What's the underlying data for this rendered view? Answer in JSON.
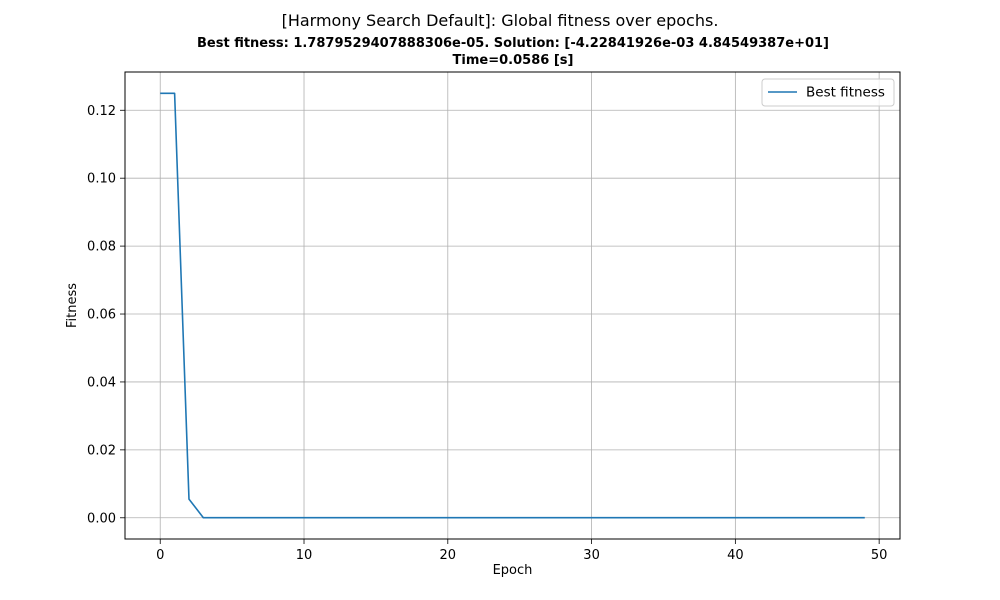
{
  "chart_data": {
    "type": "line",
    "title": "[Harmony Search Default]: Global fitness over epochs.",
    "subtitle_lines": [
      "Best fitness: 1.7879529407888306e-05. Solution: [-4.22841926e-03  4.84549387e+01]",
      "Time=0.0586 [s]"
    ],
    "xlabel": "Epoch",
    "ylabel": "Fitness",
    "xlim": [
      -2.45,
      51.45
    ],
    "ylim": [
      -0.00625,
      0.13127
    ],
    "xticks": [
      0,
      10,
      20,
      30,
      40,
      50
    ],
    "yticks": [
      0.0,
      0.02,
      0.04,
      0.06,
      0.08,
      0.1,
      0.12
    ],
    "ytick_labels": [
      "0.00",
      "0.02",
      "0.04",
      "0.06",
      "0.08",
      "0.10",
      "0.12"
    ],
    "grid": true,
    "legend_position": "top-right",
    "series": [
      {
        "name": "Best fitness",
        "color": "#1f77b4",
        "x": [
          0,
          1,
          2,
          3,
          4,
          5,
          6,
          7,
          8,
          9,
          10,
          11,
          12,
          13,
          14,
          15,
          16,
          17,
          18,
          19,
          20,
          21,
          22,
          23,
          24,
          25,
          26,
          27,
          28,
          29,
          30,
          31,
          32,
          33,
          34,
          35,
          36,
          37,
          38,
          39,
          40,
          41,
          42,
          43,
          44,
          45,
          46,
          47,
          48,
          49
        ],
        "y": [
          0.125,
          0.125,
          0.0055,
          1.79e-05,
          1.79e-05,
          1.79e-05,
          1.79e-05,
          1.79e-05,
          1.79e-05,
          1.79e-05,
          1.79e-05,
          1.79e-05,
          1.79e-05,
          1.79e-05,
          1.79e-05,
          1.79e-05,
          1.79e-05,
          1.79e-05,
          1.79e-05,
          1.79e-05,
          1.79e-05,
          1.79e-05,
          1.79e-05,
          1.79e-05,
          1.79e-05,
          1.79e-05,
          1.79e-05,
          1.79e-05,
          1.79e-05,
          1.79e-05,
          1.79e-05,
          1.79e-05,
          1.79e-05,
          1.79e-05,
          1.79e-05,
          1.79e-05,
          1.79e-05,
          1.79e-05,
          1.79e-05,
          1.79e-05,
          1.79e-05,
          1.79e-05,
          1.79e-05,
          1.79e-05,
          1.79e-05,
          1.79e-05,
          1.79e-05,
          1.79e-05,
          1.79e-05,
          1.79e-05
        ]
      }
    ]
  }
}
